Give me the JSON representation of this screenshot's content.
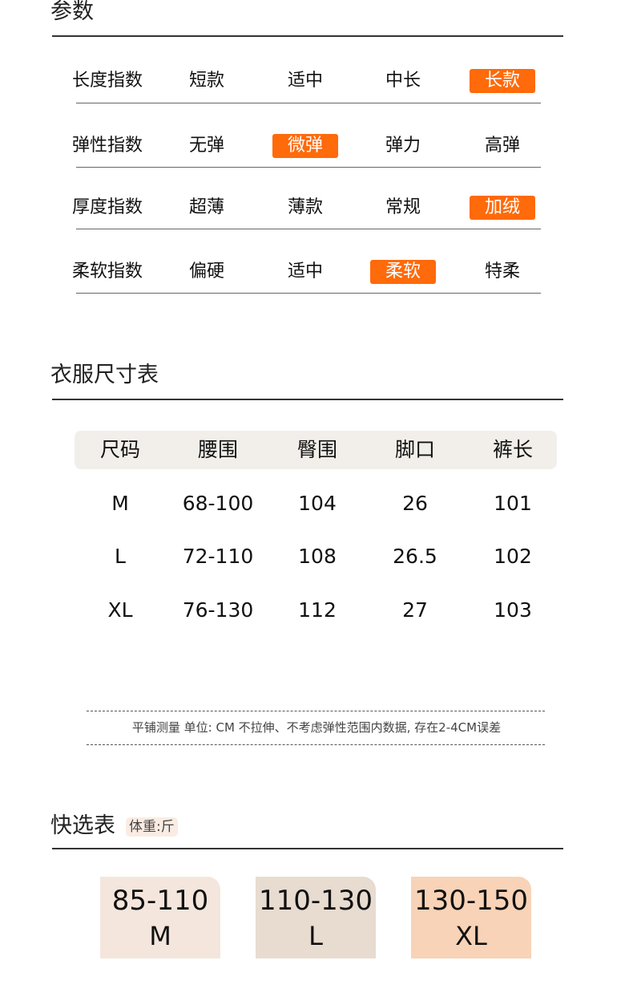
{
  "sections": {
    "params": "参数",
    "size_table": "衣服尺寸表",
    "quick": "快选表",
    "quick_unit": "体重:斤"
  },
  "params": [
    {
      "label": "长度指数",
      "options": [
        "短款",
        "适中",
        "中长",
        "长款"
      ],
      "selected": 3
    },
    {
      "label": "弹性指数",
      "options": [
        "无弹",
        "微弹",
        "弹力",
        "高弹"
      ],
      "selected": 1
    },
    {
      "label": "厚度指数",
      "options": [
        "超薄",
        "薄款",
        "常规",
        "加绒"
      ],
      "selected": 3
    },
    {
      "label": "柔软指数",
      "options": [
        "偏硬",
        "适中",
        "柔软",
        "特柔"
      ],
      "selected": 2
    }
  ],
  "size_table": {
    "headers": [
      "尺码",
      "腰围",
      "臀围",
      "脚口",
      "裤长"
    ],
    "rows": [
      [
        "M",
        "68-100",
        "104",
        "26",
        "101"
      ],
      [
        "L",
        "72-110",
        "108",
        "26.5",
        "102"
      ],
      [
        "XL",
        "76-130",
        "112",
        "27",
        "103"
      ]
    ]
  },
  "note": "平铺测量  单位: CM 不拉伸、不考虑弹性范围内数据, 存在2-4CM误差",
  "quick": [
    {
      "weight": "85-110",
      "size": "M",
      "color": "#f4e6dd"
    },
    {
      "weight": "110-130",
      "size": "L",
      "color": "#e8dbd0"
    },
    {
      "weight": "130-150",
      "size": "XL",
      "color": "#f8d3b7"
    }
  ],
  "colors": {
    "highlight": "#ff6a0a",
    "header_bg": "#f2efea"
  }
}
